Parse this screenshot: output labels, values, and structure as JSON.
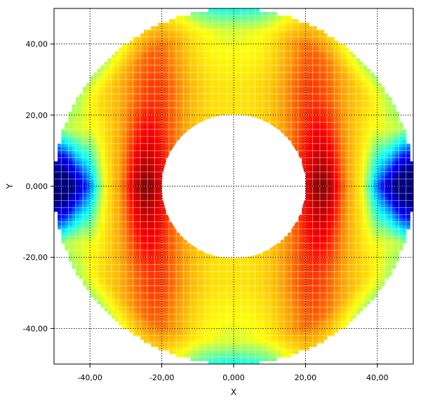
{
  "chart_data": {
    "type": "heatmap",
    "title": "",
    "xlabel": "X",
    "ylabel": "Y",
    "xlim": [
      -50,
      50
    ],
    "ylim": [
      -50,
      50
    ],
    "x_ticks": [
      {
        "value": -40,
        "label": "-40,00"
      },
      {
        "value": -20,
        "label": "-20,00"
      },
      {
        "value": 0,
        "label": "0,000"
      },
      {
        "value": 20,
        "label": "20,00"
      },
      {
        "value": 40,
        "label": "40,00"
      }
    ],
    "y_ticks": [
      {
        "value": 40,
        "label": "40,00"
      },
      {
        "value": 20,
        "label": "20,00"
      },
      {
        "value": 0,
        "label": "0,000"
      },
      {
        "value": -20,
        "label": "-20,00"
      },
      {
        "value": -40,
        "label": "-40,00"
      }
    ],
    "grid": true,
    "annulus": {
      "inner_radius": 20,
      "outer_radius": 50
    },
    "colormap": [
      "#00007f",
      "#0000ff",
      "#00ffff",
      "#ffff00",
      "#ff9900",
      "#ff0000",
      "#7f0000"
    ],
    "field_description_values": [
      {
        "x": -48,
        "y": 0,
        "level": 0.0
      },
      {
        "x": -42,
        "y": 0,
        "level": 0.2
      },
      {
        "x": -35,
        "y": 0,
        "level": 0.55
      },
      {
        "x": -25,
        "y": 0,
        "level": 1.0
      },
      {
        "x": 0,
        "y": 40,
        "level": 0.75
      },
      {
        "x": 25,
        "y": 0,
        "level": 1.0
      },
      {
        "x": 35,
        "y": 0,
        "level": 0.55
      },
      {
        "x": 42,
        "y": 0,
        "level": 0.2
      },
      {
        "x": 48,
        "y": 0,
        "level": 0.0
      }
    ]
  }
}
